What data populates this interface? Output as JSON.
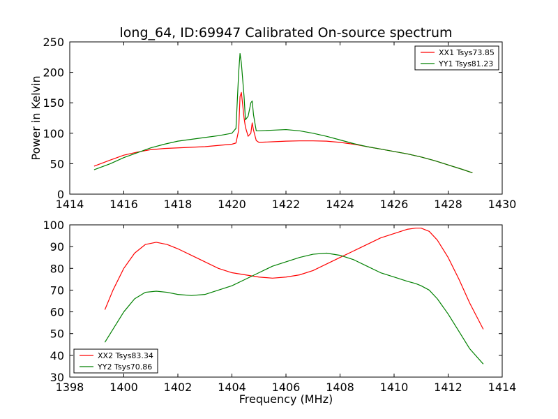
{
  "title": "long_64, ID:69947 Calibrated On-source spectrum",
  "colors": {
    "xx": "#ff0000",
    "yy": "#008000"
  },
  "chart_data": [
    {
      "type": "line",
      "xlabel": "",
      "ylabel": "Power in Kelvin",
      "xlim": [
        1414,
        1430
      ],
      "ylim": [
        0,
        250
      ],
      "xticks": [
        1414,
        1416,
        1418,
        1420,
        1422,
        1424,
        1426,
        1428,
        1430
      ],
      "yticks": [
        0,
        50,
        100,
        150,
        200,
        250
      ],
      "legend": "top-right",
      "grid": false,
      "series": [
        {
          "name": "XX1 Tsys73.85",
          "color": "#ff0000",
          "x": [
            1414.9,
            1415.5,
            1416.0,
            1416.5,
            1417.0,
            1417.5,
            1418.0,
            1418.5,
            1419.0,
            1419.5,
            1420.0,
            1420.15,
            1420.25,
            1420.3,
            1420.35,
            1420.45,
            1420.5,
            1420.6,
            1420.7,
            1420.75,
            1420.8,
            1420.9,
            1421.0,
            1421.5,
            1422.0,
            1422.5,
            1423.0,
            1423.5,
            1424.0,
            1424.5,
            1425.0,
            1425.5,
            1426.0,
            1426.5,
            1427.0,
            1427.5,
            1428.0,
            1428.5,
            1428.9
          ],
          "y": [
            46,
            56,
            64,
            69,
            73,
            75,
            76,
            77,
            78,
            80,
            82,
            84,
            105,
            160,
            167,
            125,
            110,
            95,
            100,
            117,
            105,
            88,
            85,
            86,
            87,
            87.5,
            87.5,
            87,
            85,
            82,
            78,
            74,
            70,
            66,
            61,
            55,
            48,
            41,
            35
          ]
        },
        {
          "name": "YY1 Tsys81.23",
          "color": "#008000",
          "x": [
            1414.9,
            1415.5,
            1416.0,
            1416.5,
            1417.0,
            1417.5,
            1418.0,
            1418.5,
            1419.0,
            1419.5,
            1420.0,
            1420.15,
            1420.25,
            1420.3,
            1420.35,
            1420.45,
            1420.5,
            1420.6,
            1420.7,
            1420.75,
            1420.8,
            1420.9,
            1421.0,
            1421.5,
            1422.0,
            1422.5,
            1423.0,
            1423.5,
            1424.0,
            1424.5,
            1425.0,
            1425.5,
            1426.0,
            1426.5,
            1427.0,
            1427.5,
            1428.0,
            1428.5,
            1428.9
          ],
          "y": [
            40,
            50,
            60,
            68,
            76,
            82,
            87,
            90,
            93,
            96,
            100,
            108,
            200,
            231,
            215,
            160,
            122,
            128,
            150,
            153,
            130,
            104,
            104,
            105,
            106,
            104,
            100,
            95,
            89,
            83,
            78,
            74,
            70,
            66,
            61,
            55,
            48,
            41,
            35
          ]
        }
      ]
    },
    {
      "type": "line",
      "xlabel": "Frequency (MHz)",
      "ylabel": "",
      "xlim": [
        1398,
        1414
      ],
      "ylim": [
        30,
        100
      ],
      "xticks": [
        1398,
        1400,
        1402,
        1404,
        1406,
        1408,
        1410,
        1412,
        1414
      ],
      "yticks": [
        30,
        40,
        50,
        60,
        70,
        80,
        90,
        100
      ],
      "legend": "bottom-left",
      "grid": false,
      "series": [
        {
          "name": "XX2 Tsys83.34",
          "color": "#ff0000",
          "x": [
            1399.3,
            1399.6,
            1400.0,
            1400.4,
            1400.8,
            1401.2,
            1401.6,
            1402.0,
            1402.5,
            1403.0,
            1403.5,
            1404.0,
            1404.5,
            1405.0,
            1405.5,
            1406.0,
            1406.5,
            1407.0,
            1407.5,
            1408.0,
            1408.5,
            1409.0,
            1409.5,
            1410.0,
            1410.5,
            1410.8,
            1411.0,
            1411.3,
            1411.6,
            1412.0,
            1412.4,
            1412.8,
            1413.3
          ],
          "y": [
            61,
            70,
            80,
            87,
            91,
            92,
            91,
            89,
            86,
            83,
            80,
            78,
            77,
            76,
            75.5,
            76,
            77,
            79,
            82,
            85,
            88,
            91,
            94,
            96,
            98,
            98.5,
            98.5,
            97,
            93,
            85,
            75,
            64,
            52
          ]
        },
        {
          "name": "YY2 Tsys70.86",
          "color": "#008000",
          "x": [
            1399.3,
            1399.6,
            1400.0,
            1400.4,
            1400.8,
            1401.2,
            1401.6,
            1402.0,
            1402.5,
            1403.0,
            1403.5,
            1404.0,
            1404.5,
            1405.0,
            1405.5,
            1406.0,
            1406.5,
            1407.0,
            1407.5,
            1408.0,
            1408.5,
            1409.0,
            1409.5,
            1410.0,
            1410.5,
            1410.8,
            1411.0,
            1411.3,
            1411.6,
            1412.0,
            1412.4,
            1412.8,
            1413.3
          ],
          "y": [
            46,
            52,
            60,
            66,
            69,
            69.5,
            69,
            68,
            67.5,
            68,
            70,
            72,
            75,
            78,
            81,
            83,
            85,
            86.5,
            87,
            86,
            84,
            81,
            78,
            76,
            74,
            73,
            72,
            70,
            66,
            59,
            51,
            43,
            36
          ]
        }
      ]
    }
  ]
}
